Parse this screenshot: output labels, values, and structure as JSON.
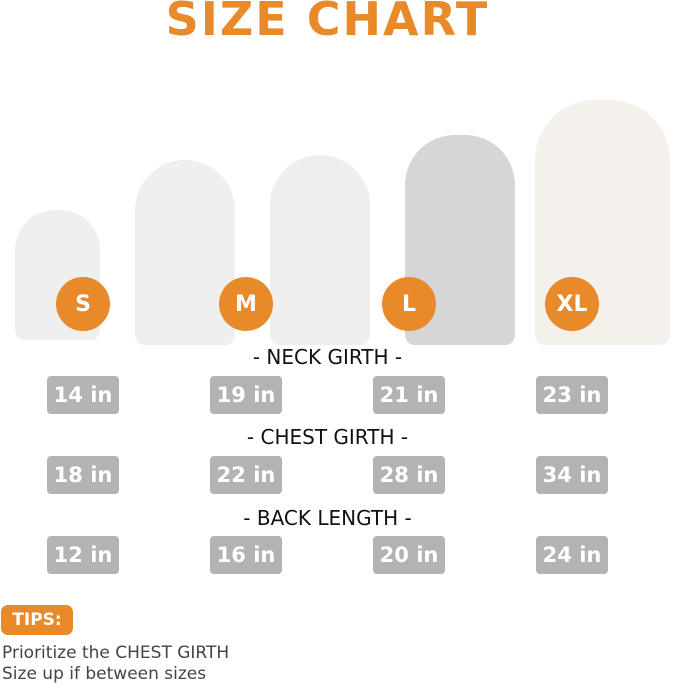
{
  "title": "SIZE CHART",
  "sizes": [
    "S",
    "M",
    "L",
    "XL"
  ],
  "sections": [
    {
      "heading": "- NECK GIRTH -",
      "values": [
        "14 in",
        "19 in",
        "21 in",
        "23 in"
      ]
    },
    {
      "heading": "- CHEST GIRTH -",
      "values": [
        "18 in",
        "22 in",
        "28 in",
        "34 in"
      ]
    },
    {
      "heading": "- BACK LENGTH -",
      "values": [
        "12 in",
        "16 in",
        "20 in",
        "24 in"
      ]
    }
  ],
  "tips": {
    "label": "TIPS:",
    "lines": [
      "Prioritize the CHEST GIRTH",
      "Size up if between sizes"
    ]
  },
  "colors": {
    "accent": "#e8892a",
    "box": "#b3b3b3"
  }
}
